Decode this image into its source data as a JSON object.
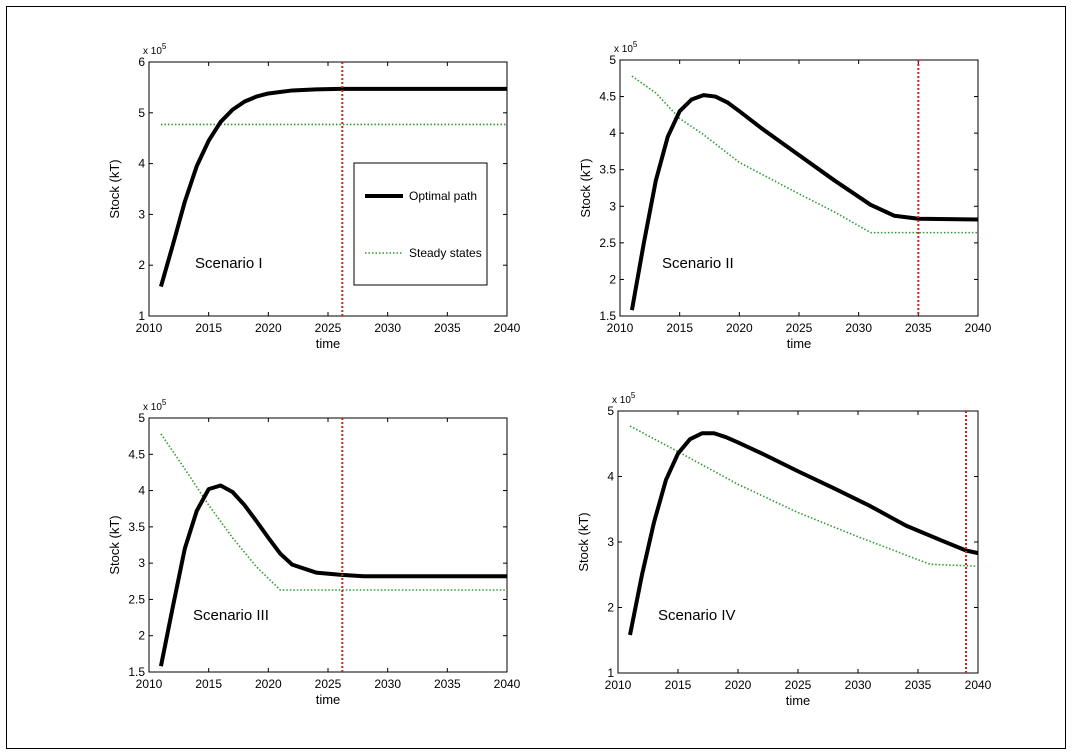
{
  "colors": {
    "optimal": "#000000",
    "steady": "#2e9a2e",
    "marker": "#d42020"
  },
  "legend": {
    "items": [
      {
        "label": "Optimal path",
        "style": "solid-black-thick"
      },
      {
        "label": "Steady states",
        "style": "dotted-green"
      }
    ]
  },
  "chart_data": [
    {
      "type": "line",
      "title": "",
      "annotation": "Scenario I",
      "xlabel": "time",
      "ylabel": "Stock (kT)",
      "y_multiplier": "x 10",
      "y_exponent": "5",
      "xlim": [
        2010,
        2040
      ],
      "ylim": [
        1,
        6
      ],
      "xticks": [
        "2010",
        "2015",
        "2020",
        "2025",
        "2030",
        "2035",
        "2040"
      ],
      "yticks": [
        "1",
        "2",
        "3",
        "4",
        "5",
        "6"
      ],
      "vline_x": 2026.2,
      "series": [
        {
          "name": "Optimal path",
          "x": [
            2011,
            2012,
            2013,
            2014,
            2015,
            2016,
            2017,
            2018,
            2019,
            2020,
            2022,
            2024,
            2026,
            2028,
            2030,
            2035,
            2040
          ],
          "y": [
            1.58,
            2.4,
            3.25,
            3.95,
            4.45,
            4.82,
            5.06,
            5.22,
            5.32,
            5.38,
            5.44,
            5.46,
            5.47,
            5.47,
            5.47,
            5.47,
            5.47
          ]
        },
        {
          "name": "Steady states",
          "x": [
            2011,
            2040
          ],
          "y": [
            4.77,
            4.77
          ]
        }
      ]
    },
    {
      "type": "line",
      "title": "",
      "annotation": "Scenario II",
      "xlabel": "time",
      "ylabel": "Stock (kT)",
      "y_multiplier": "x 10",
      "y_exponent": "5",
      "xlim": [
        2010,
        2040
      ],
      "ylim": [
        1.5,
        5
      ],
      "xticks": [
        "2010",
        "2015",
        "2020",
        "2025",
        "2030",
        "2035",
        "2040"
      ],
      "yticks": [
        "1.5",
        "2",
        "2.5",
        "3",
        "3.5",
        "4",
        "4.5",
        "5"
      ],
      "vline_x": 2035,
      "series": [
        {
          "name": "Optimal path",
          "x": [
            2011,
            2012,
            2013,
            2014,
            2015,
            2016,
            2017,
            2018,
            2019,
            2020,
            2022,
            2025,
            2028,
            2031,
            2033,
            2035,
            2040
          ],
          "y": [
            1.58,
            2.5,
            3.35,
            3.95,
            4.3,
            4.46,
            4.52,
            4.5,
            4.42,
            4.3,
            4.05,
            3.7,
            3.35,
            3.02,
            2.87,
            2.83,
            2.82
          ]
        },
        {
          "name": "Steady states",
          "x": [
            2011,
            2013,
            2015,
            2017,
            2020,
            2025,
            2028,
            2031,
            2040
          ],
          "y": [
            4.78,
            4.55,
            4.2,
            3.98,
            3.6,
            3.17,
            2.92,
            2.64,
            2.64
          ]
        }
      ]
    },
    {
      "type": "line",
      "title": "",
      "annotation": "Scenario III",
      "xlabel": "time",
      "ylabel": "Stock (kT)",
      "y_multiplier": "x 10",
      "y_exponent": "5",
      "xlim": [
        2010,
        2040
      ],
      "ylim": [
        1.5,
        5
      ],
      "xticks": [
        "2010",
        "2015",
        "2020",
        "2025",
        "2030",
        "2035",
        "2040"
      ],
      "yticks": [
        "1.5",
        "2",
        "2.5",
        "3",
        "3.5",
        "4",
        "4.5",
        "5"
      ],
      "vline_x": 2026.2,
      "series": [
        {
          "name": "Optimal path",
          "x": [
            2011,
            2012,
            2013,
            2014,
            2015,
            2016,
            2017,
            2018,
            2019,
            2020,
            2021,
            2022,
            2024,
            2026,
            2028,
            2030,
            2035,
            2040
          ],
          "y": [
            1.58,
            2.4,
            3.2,
            3.72,
            4.02,
            4.07,
            3.98,
            3.8,
            3.58,
            3.35,
            3.13,
            2.98,
            2.87,
            2.84,
            2.82,
            2.82,
            2.82,
            2.82
          ]
        },
        {
          "name": "Steady states",
          "x": [
            2011,
            2013,
            2015,
            2017,
            2019,
            2021,
            2040
          ],
          "y": [
            4.78,
            4.3,
            3.8,
            3.35,
            2.95,
            2.63,
            2.63
          ]
        }
      ]
    },
    {
      "type": "line",
      "title": "",
      "annotation": "Scenario IV",
      "xlabel": "time",
      "ylabel": "Stock (kT)",
      "y_multiplier": "x 10",
      "y_exponent": "5",
      "xlim": [
        2010,
        2040
      ],
      "ylim": [
        1,
        5
      ],
      "xticks": [
        "2010",
        "2015",
        "2020",
        "2025",
        "2030",
        "2035",
        "2040"
      ],
      "yticks": [
        "1",
        "2",
        "3",
        "4",
        "5"
      ],
      "vline_x": 2039,
      "series": [
        {
          "name": "Optimal path",
          "x": [
            2011,
            2012,
            2013,
            2014,
            2015,
            2016,
            2017,
            2018,
            2019,
            2020,
            2022,
            2025,
            2028,
            2031,
            2034,
            2037,
            2039,
            2040
          ],
          "y": [
            1.58,
            2.5,
            3.3,
            3.95,
            4.35,
            4.57,
            4.66,
            4.66,
            4.6,
            4.52,
            4.35,
            4.08,
            3.82,
            3.55,
            3.25,
            3.02,
            2.87,
            2.83
          ]
        },
        {
          "name": "Steady states",
          "x": [
            2011,
            2015,
            2020,
            2025,
            2030,
            2034,
            2036,
            2040
          ],
          "y": [
            4.77,
            4.38,
            3.88,
            3.45,
            3.08,
            2.8,
            2.66,
            2.63
          ]
        }
      ]
    }
  ]
}
